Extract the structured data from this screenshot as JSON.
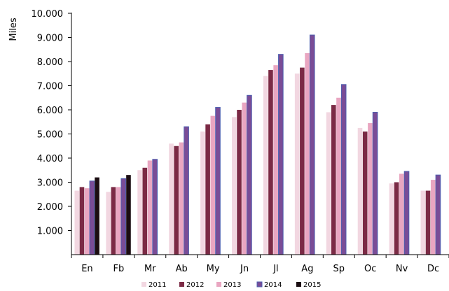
{
  "chart_data": {
    "type": "bar",
    "title": "",
    "xlabel": "",
    "ylabel": "Miles",
    "ylim": [
      0,
      10000
    ],
    "yticks": [
      "10.000",
      "9.000",
      "8.000",
      "7.000",
      "6.000",
      "5.000",
      "4.000",
      "3.000",
      "2.000",
      "1.000"
    ],
    "ytick_values": [
      10000,
      9000,
      8000,
      7000,
      6000,
      5000,
      4000,
      3000,
      2000,
      1000
    ],
    "grid": false,
    "legend_position": "bottom",
    "categories": [
      "En",
      "Fb",
      "Mr",
      "Ab",
      "My",
      "Jn",
      "Jl",
      "Ag",
      "Sp",
      "Oc",
      "Nv",
      "Dc"
    ],
    "series": [
      {
        "name": "2011",
        "color": "#f2d7e1",
        "values": [
          2650,
          2600,
          3500,
          4600,
          5100,
          5700,
          7400,
          7500,
          5900,
          5250,
          2950,
          2650
        ]
      },
      {
        "name": "2012",
        "color": "#7b2a45",
        "values": [
          2800,
          2800,
          3600,
          4500,
          5400,
          6000,
          7650,
          7750,
          6200,
          5100,
          3000,
          2650
        ]
      },
      {
        "name": "2013",
        "color": "#e9a6c1",
        "values": [
          2750,
          2800,
          3900,
          4650,
          5750,
          6300,
          7850,
          8350,
          6500,
          5450,
          3350,
          3100
        ]
      },
      {
        "name": "2014",
        "color": "#7a4c96",
        "values": [
          3050,
          3150,
          3950,
          5300,
          6100,
          6600,
          8300,
          9100,
          7050,
          5900,
          3450,
          3300
        ]
      },
      {
        "name": "2015",
        "color": "#1b0d12",
        "values": [
          3200,
          3300,
          null,
          null,
          null,
          null,
          null,
          null,
          null,
          null,
          null,
          null
        ]
      }
    ]
  }
}
